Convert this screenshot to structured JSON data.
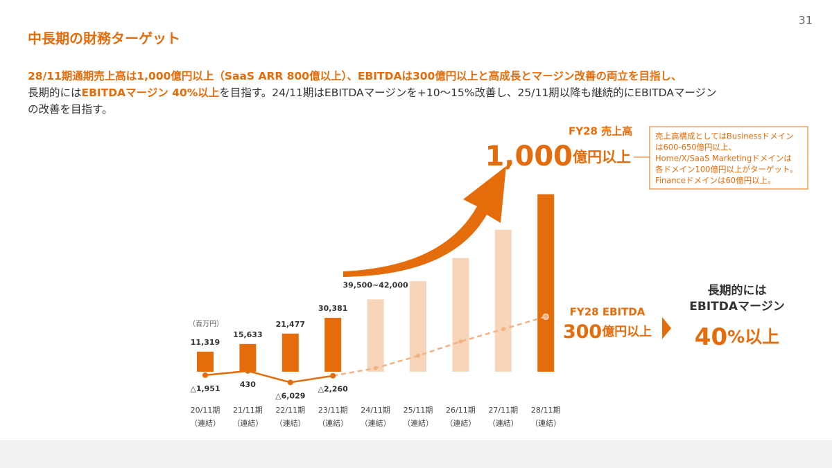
{
  "page_number": "31",
  "title": "中長期の財務ターゲット",
  "summary": {
    "lines": [
      [
        {
          "text": "28/11期通期売上高は1,000億円以上（SaaS ARR 800億以上）、EBITDAは300億円以上と高成長とマージン改善の両立を目指し、",
          "emphasis": true
        }
      ],
      [
        {
          "text": "長期的には",
          "emphasis": false
        },
        {
          "text": "EBITDAマージン 40%以上",
          "emphasis": true
        },
        {
          "text": "を目指す。24/11期はEBITDAマージンを+10〜15%改善し、25/11期以降も継続的にEBITDAマージン",
          "emphasis": false
        }
      ],
      [
        {
          "text": "の改善を目指す。",
          "emphasis": false
        }
      ]
    ]
  },
  "annotations": {
    "revenue_head": "FY28 売上高",
    "revenue_big": "1,000",
    "revenue_unit": "億円以上",
    "note": [
      "売上高構成としてはBusinessドメイン",
      "は600-650億円以上、",
      "Home/X/SaaS Marketingドメインは",
      "各ドメイン100億円以上がターゲット。",
      "Financeドメインは60億円以上。"
    ],
    "ebitda_head": "FY28 EBITDA",
    "ebitda_big": "300",
    "ebitda_unit": "億円以上",
    "margin_1": "長期的には",
    "margin_2": "EBITDAマージン",
    "margin_big": "40",
    "margin_unit": "%以上"
  },
  "chart_data": {
    "type": "bar",
    "unit_label": "（百万円）",
    "range_label": "39,500~42,000",
    "categories": [
      "20/11期",
      "21/11期",
      "22/11期",
      "23/11期",
      "24/11期",
      "25/11期",
      "26/11期",
      "27/11期",
      "28/11期"
    ],
    "category_sublabel": "（連結）",
    "ylim": [
      -9000,
      147000
    ],
    "series": [
      {
        "type": "bar",
        "values": [
          11319,
          15633,
          21477,
          30381,
          40750,
          51000,
          64000,
          80000,
          100000
        ],
        "value_labels": [
          "11,319",
          "15,633",
          "21,477",
          "30,381",
          null,
          null,
          null,
          null,
          null
        ],
        "colors": [
          "#e46c0a",
          "#e46c0a",
          "#e46c0a",
          "#e46c0a",
          "#f8d5b8",
          "#f8d5b8",
          "#f8d5b8",
          "#f8d5b8",
          "#e46c0a"
        ]
      },
      {
        "type": "line",
        "color": "#e46c0a",
        "dashed_color": "#f4b183",
        "dashed_from": 3,
        "values": [
          -1951,
          430,
          -6029,
          -2260,
          2000,
          9000,
          17000,
          24000,
          31000
        ],
        "value_labels": [
          "△1,951",
          "430",
          "△6,029",
          "△2,260",
          null,
          null,
          null,
          null,
          null
        ]
      }
    ]
  }
}
